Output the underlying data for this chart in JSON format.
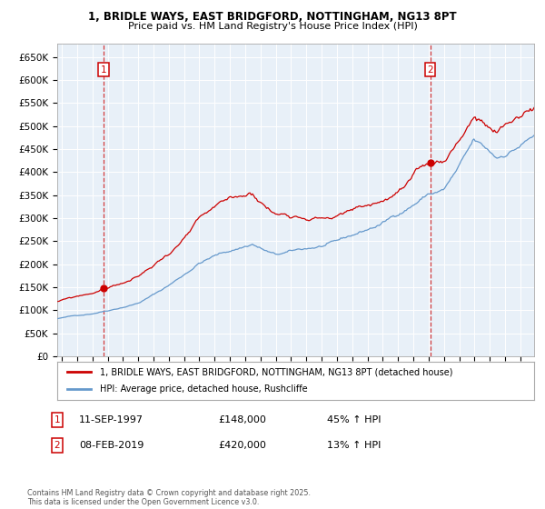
{
  "title1": "1, BRIDLE WAYS, EAST BRIDGFORD, NOTTINGHAM, NG13 8PT",
  "title2": "Price paid vs. HM Land Registry's House Price Index (HPI)",
  "legend_line1": "1, BRIDLE WAYS, EAST BRIDGFORD, NOTTINGHAM, NG13 8PT (detached house)",
  "legend_line2": "HPI: Average price, detached house, Rushcliffe",
  "annotation1_date": "11-SEP-1997",
  "annotation1_price": "£148,000",
  "annotation1_hpi": "45% ↑ HPI",
  "annotation2_date": "08-FEB-2019",
  "annotation2_price": "£420,000",
  "annotation2_hpi": "13% ↑ HPI",
  "footnote": "Contains HM Land Registry data © Crown copyright and database right 2025.\nThis data is licensed under the Open Government Licence v3.0.",
  "red_color": "#cc0000",
  "blue_color": "#6699cc",
  "plot_bg": "#e8f0f8",
  "ylim": [
    0,
    680000
  ],
  "ytick_step": 50000,
  "sale1_year": 1997.71,
  "sale1_price": 148000,
  "sale2_year": 2019.1,
  "sale2_price": 420000,
  "xmin": 1994.7,
  "xmax": 2025.9
}
